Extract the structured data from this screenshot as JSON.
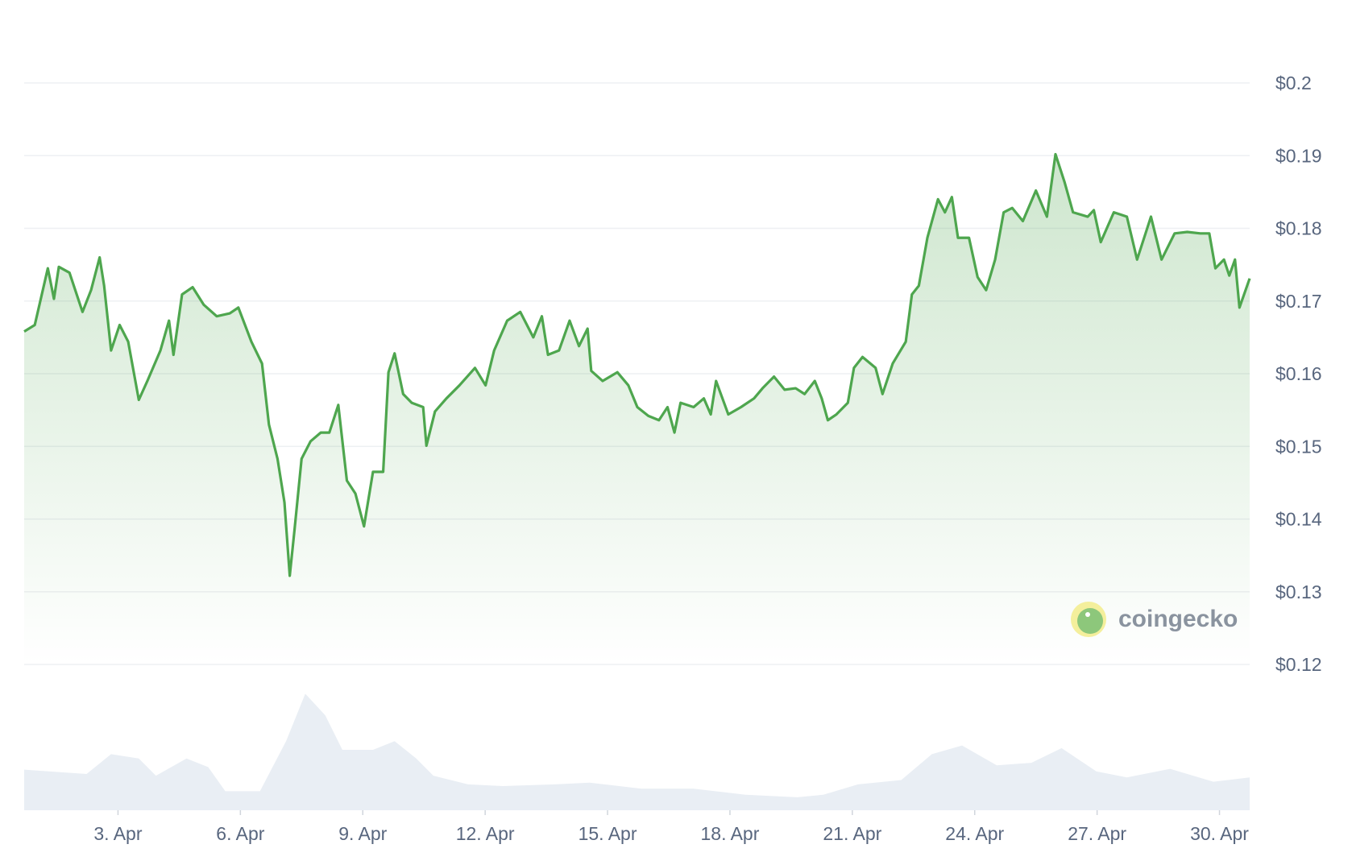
{
  "chart_data": {
    "type": "line",
    "watermark": "coingecko",
    "x": [
      0.7,
      0.96,
      1.28,
      1.43,
      1.55,
      1.81,
      2.13,
      2.34,
      2.55,
      2.66,
      2.83,
      3.04,
      3.25,
      3.51,
      3.72,
      4.04,
      4.25,
      4.36,
      4.57,
      4.83,
      5.1,
      5.42,
      5.74,
      5.95,
      6.27,
      6.53,
      6.7,
      6.91,
      7.08,
      7.21,
      7.33,
      7.5,
      7.72,
      7.97,
      8.18,
      8.4,
      8.61,
      8.82,
      9.03,
      9.25,
      9.5,
      9.63,
      9.78,
      9.99,
      10.2,
      10.48,
      10.56,
      10.77,
      11.05,
      11.37,
      11.75,
      12.01,
      12.22,
      12.54,
      12.86,
      13.18,
      13.39,
      13.54,
      13.81,
      14.07,
      14.3,
      14.51,
      14.6,
      14.88,
      15.24,
      15.51,
      15.73,
      16.0,
      16.26,
      16.47,
      16.64,
      16.79,
      17.11,
      17.36,
      17.53,
      17.66,
      17.96,
      18.27,
      18.59,
      18.8,
      19.08,
      19.34,
      19.61,
      19.83,
      20.08,
      20.25,
      20.4,
      20.61,
      20.89,
      21.04,
      21.25,
      21.57,
      21.74,
      21.99,
      22.31,
      22.46,
      22.63,
      22.84,
      23.1,
      23.27,
      23.44,
      23.59,
      23.86,
      24.07,
      24.28,
      24.5,
      24.71,
      24.92,
      25.18,
      25.5,
      25.77,
      25.98,
      26.2,
      26.41,
      26.77,
      26.92,
      27.09,
      27.41,
      27.73,
      27.98,
      28.32,
      28.58,
      28.9,
      29.21,
      29.53,
      29.75,
      29.9,
      30.11,
      30.24,
      30.38,
      30.49,
      30.74
    ],
    "series": [
      {
        "color": "#4ea64e",
        "values": [
          0.1658,
          0.1667,
          0.1745,
          0.1703,
          0.1747,
          0.1739,
          0.1685,
          0.1715,
          0.176,
          0.1721,
          0.1632,
          0.1667,
          0.1644,
          0.1564,
          0.159,
          0.1632,
          0.1673,
          0.1626,
          0.1709,
          0.1719,
          0.1695,
          0.1679,
          0.1683,
          0.1691,
          0.1644,
          0.1614,
          0.153,
          0.1483,
          0.1423,
          0.1322,
          0.1387,
          0.1483,
          0.1507,
          0.1519,
          0.1519,
          0.1557,
          0.1453,
          0.1435,
          0.139,
          0.1465,
          0.1465,
          0.1602,
          0.1628,
          0.1572,
          0.156,
          0.1554,
          0.1501,
          0.1548,
          0.1566,
          0.1584,
          0.1608,
          0.1584,
          0.1632,
          0.1673,
          0.1685,
          0.165,
          0.1679,
          0.1626,
          0.1632,
          0.1673,
          0.1638,
          0.1662,
          0.1604,
          0.159,
          0.1602,
          0.1584,
          0.1554,
          0.1542,
          0.1536,
          0.1554,
          0.1519,
          0.156,
          0.1554,
          0.1566,
          0.1544,
          0.159,
          0.1544,
          0.1554,
          0.1566,
          0.158,
          0.1596,
          0.1578,
          0.158,
          0.1572,
          0.159,
          0.1566,
          0.1536,
          0.1544,
          0.156,
          0.1608,
          0.1623,
          0.1608,
          0.1572,
          0.1614,
          0.1644,
          0.1709,
          0.1721,
          0.1787,
          0.184,
          0.1822,
          0.1843,
          0.1787,
          0.1787,
          0.1733,
          0.1715,
          0.1757,
          0.1822,
          0.1828,
          0.181,
          0.1852,
          0.1816,
          0.1902,
          0.1864,
          0.1822,
          0.1816,
          0.1825,
          0.1781,
          0.1822,
          0.1816,
          0.1757,
          0.1816,
          0.1757,
          0.1793,
          0.1795,
          0.1793,
          0.1793,
          0.1745,
          0.1757,
          0.1735,
          0.1757,
          0.1691,
          0.1731
        ]
      }
    ],
    "volume": {
      "color": "#e9eef4",
      "x": [
        0.7,
        2.23,
        2.83,
        3.51,
        3.93,
        4.68,
        5.21,
        5.63,
        6.48,
        7.12,
        7.59,
        8.08,
        8.5,
        9.25,
        9.78,
        10.31,
        10.73,
        11.58,
        12.43,
        13.71,
        14.56,
        15.83,
        17.11,
        18.38,
        19.65,
        20.29,
        21.14,
        22.2,
        22.95,
        23.69,
        24.54,
        25.39,
        26.13,
        26.98,
        27.73,
        28.79,
        29.85,
        30.74
      ],
      "values": [
        47,
        42,
        65,
        60,
        40,
        60,
        50,
        22,
        22,
        80,
        135,
        110,
        70,
        70,
        80,
        60,
        40,
        30,
        28,
        30,
        32,
        25,
        25,
        18,
        15,
        18,
        30,
        35,
        65,
        75,
        52,
        55,
        72,
        45,
        38,
        48,
        33,
        38
      ],
      "ylim": [
        0,
        140
      ]
    },
    "xlim": [
      0.7,
      30.74
    ],
    "xticks": [
      {
        "value": 3,
        "label": "3. Apr"
      },
      {
        "value": 6,
        "label": "6. Apr"
      },
      {
        "value": 9,
        "label": "9. Apr"
      },
      {
        "value": 12,
        "label": "12. Apr"
      },
      {
        "value": 15,
        "label": "15. Apr"
      },
      {
        "value": 18,
        "label": "18. Apr"
      },
      {
        "value": 21,
        "label": "21. Apr"
      },
      {
        "value": 24,
        "label": "24. Apr"
      },
      {
        "value": 27,
        "label": "27. Apr"
      },
      {
        "value": 30,
        "label": "30. Apr"
      }
    ],
    "ylim": [
      0.12,
      0.2
    ],
    "yticks": [
      {
        "value": 0.2,
        "label": "$0.2"
      },
      {
        "value": 0.19,
        "label": "$0.19"
      },
      {
        "value": 0.18,
        "label": "$0.18"
      },
      {
        "value": 0.17,
        "label": "$0.17"
      },
      {
        "value": 0.16,
        "label": "$0.16"
      },
      {
        "value": 0.15,
        "label": "$0.15"
      },
      {
        "value": 0.14,
        "label": "$0.14"
      },
      {
        "value": 0.13,
        "label": "$0.13"
      },
      {
        "value": 0.12,
        "label": "$0.12"
      }
    ],
    "grid": true
  }
}
